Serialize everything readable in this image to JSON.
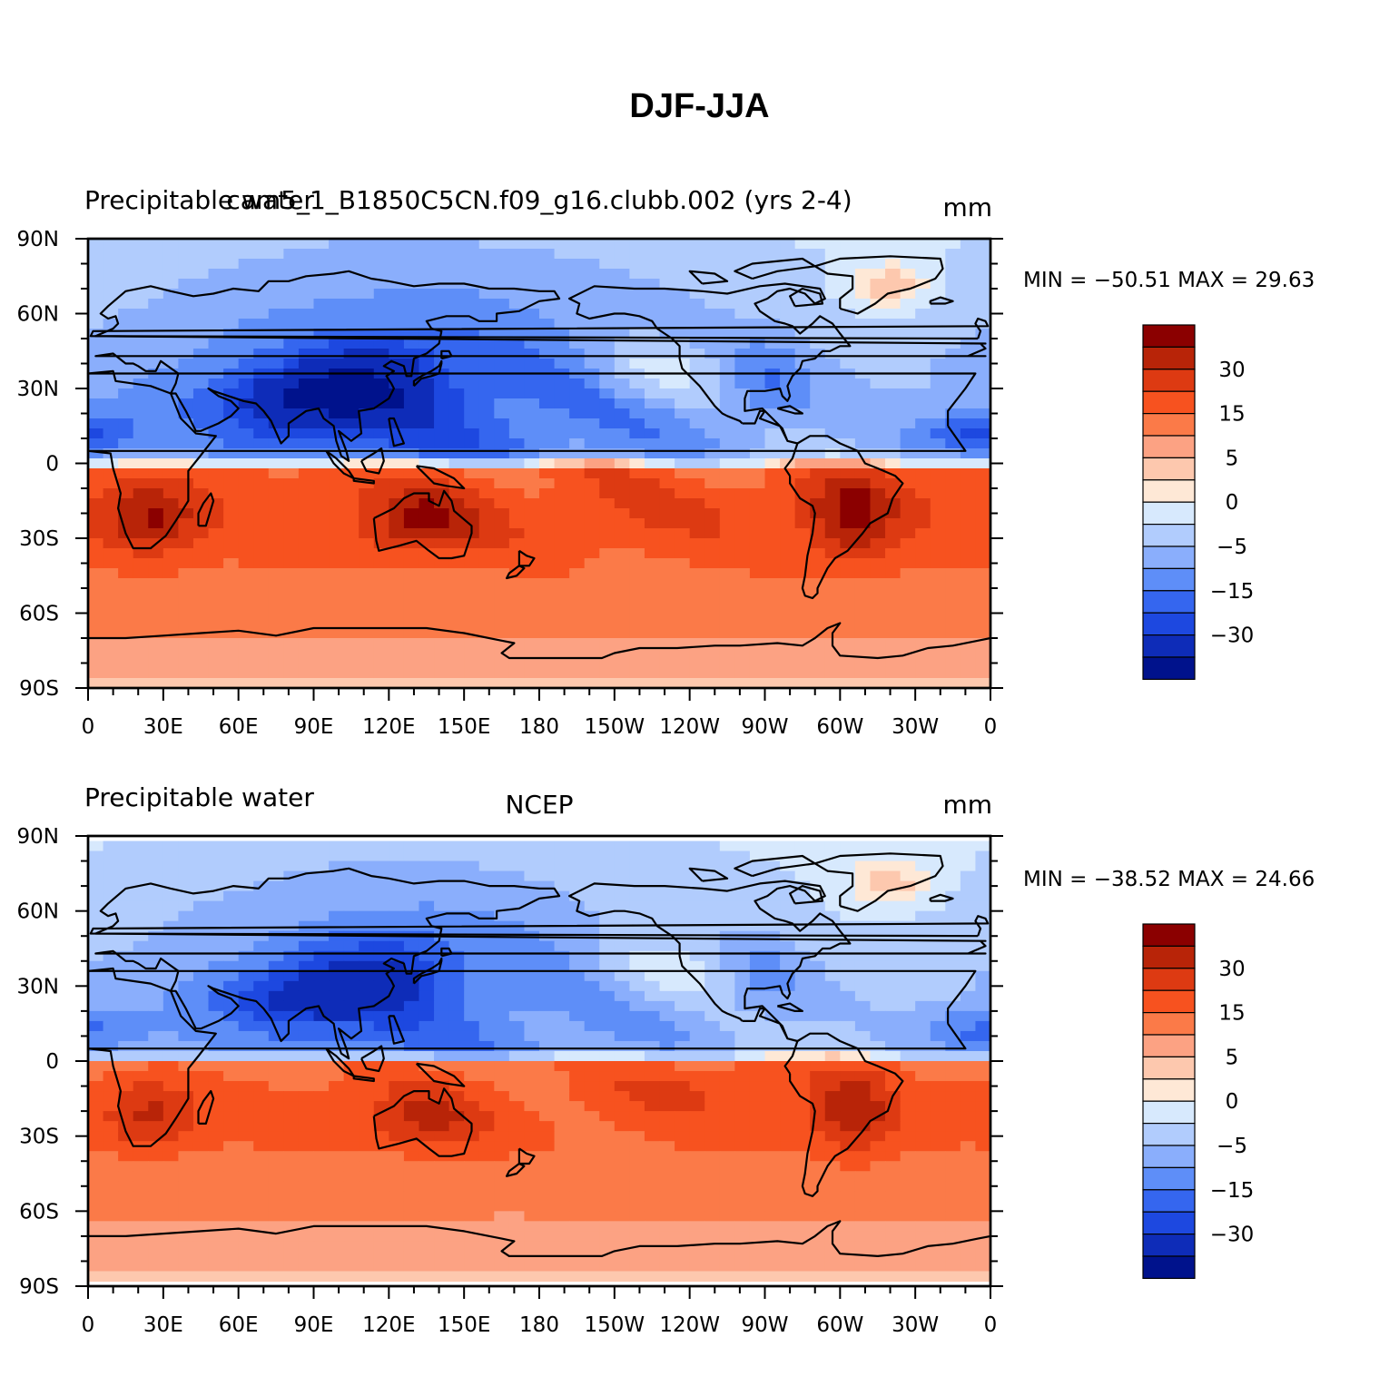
{
  "title": "DJF-JJA",
  "panels": [
    {
      "id": "top",
      "left_label": "Precipitable water",
      "center_label": "cam5_1_B1850C5CN.f09_g16.clubb.002 (yrs 2-4)",
      "units": "mm",
      "stats": "MIN = −50.51  MAX =   29.63",
      "min": -50.51,
      "max": 29.63,
      "variant": 0
    },
    {
      "id": "bottom",
      "left_label": "Precipitable water",
      "center_label": "NCEP",
      "units": "mm",
      "stats": "MIN = −38.52  MAX =   24.66",
      "min": -38.52,
      "max": 24.66,
      "variant": 1
    }
  ],
  "axes": {
    "lat_labels": [
      "90N",
      "60N",
      "30N",
      "0",
      "30S",
      "60S",
      "90S"
    ],
    "lat_values": [
      90,
      60,
      30,
      0,
      -30,
      -60,
      -90
    ],
    "lon_labels": [
      "0",
      "30E",
      "60E",
      "90E",
      "120E",
      "150E",
      "180",
      "150W",
      "120W",
      "90W",
      "60W",
      "30W",
      "0"
    ],
    "lon_values": [
      0,
      30,
      60,
      90,
      120,
      150,
      180,
      210,
      240,
      270,
      300,
      330,
      360
    ]
  },
  "colorbar": {
    "labels": [
      "30",
      "15",
      "5",
      "0",
      "−5",
      "−15",
      "−30"
    ],
    "colors": [
      "#8b0000",
      "#b82408",
      "#dd3a12",
      "#f7521f",
      "#fb7a48",
      "#fca283",
      "#fdc8ae",
      "#fee8d6",
      "#d7e9fd",
      "#b1ccfd",
      "#8aaefc",
      "#5e8ef8",
      "#3566ef",
      "#1d48e0",
      "#0e2cb8",
      "#00128c"
    ]
  },
  "chart_data": [
    {
      "type": "heatmap",
      "title": "DJF-JJA",
      "subtitle": "cam5_1_B1850C5CN.f09_g16.clubb.002 (yrs 2-4)",
      "variable": "Precipitable water",
      "units": "mm",
      "min": -50.51,
      "max": 29.63,
      "contour_levels": [
        -40,
        -30,
        -25,
        -20,
        -15,
        -10,
        -5,
        -2,
        0,
        2,
        5,
        10,
        15,
        20,
        25,
        30
      ]
    },
    {
      "type": "heatmap",
      "title": "DJF-JJA",
      "subtitle": "NCEP",
      "variable": "Precipitable water",
      "units": "mm",
      "min": -38.52,
      "max": 24.66,
      "contour_levels": [
        -40,
        -30,
        -25,
        -20,
        -15,
        -10,
        -5,
        -2,
        0,
        2,
        5,
        10,
        15,
        20,
        25,
        30
      ]
    }
  ]
}
